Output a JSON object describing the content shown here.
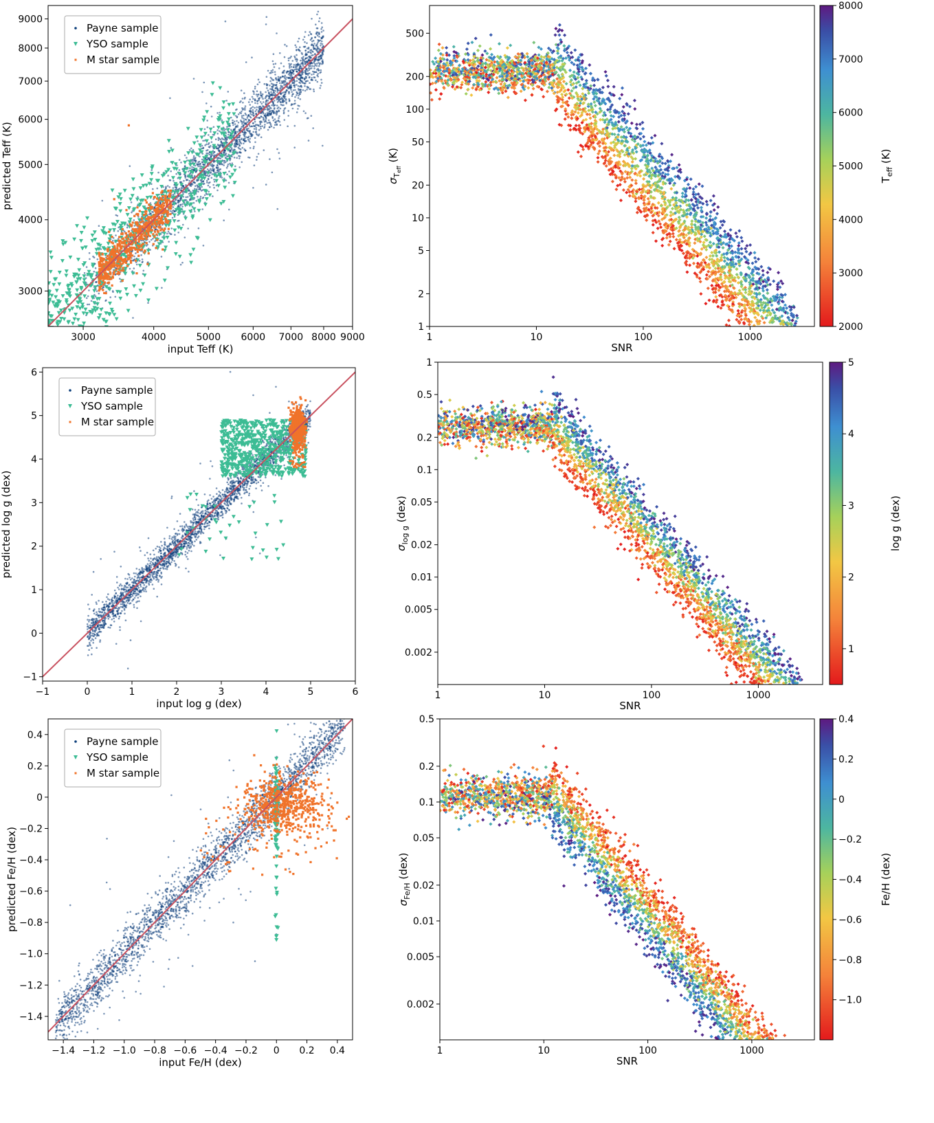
{
  "colors": {
    "payne": "#0b3d7a",
    "yso": "#3cbc94",
    "mstar": "#f0732a",
    "line": "#c8505e"
  },
  "chart_data": [
    {
      "type": "scatter",
      "id": "teff_compare",
      "xlabel": "input Teff (K)",
      "ylabel": "predicted Teff (K)",
      "xscale": "log",
      "yscale": "log",
      "xlim": [
        2600,
        9000
      ],
      "ylim": [
        2600,
        9500
      ],
      "xticks": [
        3000,
        4000,
        5000,
        6000,
        7000,
        8000,
        9000
      ],
      "xticklabels": [
        "3000",
        "4000",
        "5000",
        "6000",
        "7000",
        "8000",
        "9000"
      ],
      "yticks": [
        3000,
        4000,
        5000,
        6000,
        7000,
        8000,
        9000
      ],
      "yticklabels": [
        "3000",
        "4000",
        "5000",
        "6000",
        "7000",
        "8000",
        "9000"
      ],
      "legend": {
        "placement": "top-left",
        "entries": [
          "Payne sample",
          "YSO sample",
          "M star sample"
        ]
      },
      "series": [
        {
          "name": "Payne sample",
          "marker": "dot",
          "x_range": [
            3000,
            8000
          ],
          "scatter_frac": 0.04
        },
        {
          "name": "YSO sample",
          "marker": "triangle-down",
          "x_range": [
            2600,
            5600
          ],
          "scatter_frac": 0.12
        },
        {
          "name": "M star sample",
          "marker": "square",
          "x_range": [
            3200,
            4300
          ],
          "scatter_frac": 0.04
        }
      ],
      "reference_line": "y = x"
    },
    {
      "type": "scatter",
      "id": "teff_sigma",
      "xlabel": "SNR",
      "ylabel": "σ_Teff (K)",
      "ylabel_parts": {
        "sym": "σ",
        "sub": "T",
        "subsub": "eff",
        "unit": " (K)"
      },
      "xscale": "log",
      "yscale": "log",
      "xlim": [
        1,
        4000
      ],
      "ylim": [
        1,
        900
      ],
      "xticks": [
        1,
        10,
        100,
        1000
      ],
      "xticklabels": [
        "1",
        "10",
        "100",
        "1000"
      ],
      "yticks": [
        1,
        2,
        5,
        10,
        20,
        50,
        100,
        200,
        500
      ],
      "yticklabels": [
        "1",
        "2",
        "5",
        "10",
        "20",
        "50",
        "100",
        "200",
        "500"
      ],
      "colorbar": {
        "label": "Teff (K)",
        "label_parts": {
          "main": "T",
          "sub": "eff",
          "unit": " (K)"
        },
        "range": [
          2000,
          8000
        ],
        "ticks": [
          2000,
          3000,
          4000,
          5000,
          6000,
          7000,
          8000
        ],
        "ticklabels": [
          "2000",
          "3000",
          "4000",
          "5000",
          "6000",
          "7000",
          "8000"
        ]
      },
      "plateau": 220,
      "knee": 15,
      "slope": -1.15,
      "spread_dex": 0.45
    },
    {
      "type": "scatter",
      "id": "logg_compare",
      "xlabel": "input log g (dex)",
      "ylabel": "predicted log g (dex)",
      "xlim": [
        -1,
        6
      ],
      "ylim": [
        -1.1,
        6.1
      ],
      "xticks": [
        -1,
        0,
        1,
        2,
        3,
        4,
        5,
        6
      ],
      "xticklabels": [
        "−1",
        "0",
        "1",
        "2",
        "3",
        "4",
        "5",
        "6"
      ],
      "yticks": [
        -1,
        0,
        1,
        2,
        3,
        4,
        5,
        6
      ],
      "yticklabels": [
        "−1",
        "0",
        "1",
        "2",
        "3",
        "4",
        "5",
        "6"
      ],
      "legend": {
        "placement": "top-left",
        "entries": [
          "Payne sample",
          "YSO sample",
          "M star sample"
        ]
      },
      "series": [
        {
          "name": "Payne sample",
          "marker": "dot",
          "x_range": [
            0,
            5
          ],
          "scatter_abs": 0.18
        },
        {
          "name": "YSO sample",
          "marker": "triangle-down",
          "x_range": [
            3.0,
            4.9
          ],
          "y_range": [
            3.6,
            4.9
          ]
        },
        {
          "name": "M star sample",
          "marker": "square",
          "x_range": [
            4.6,
            5.0
          ],
          "y_range": [
            3.8,
            5.3
          ]
        }
      ],
      "reference_line": "y = x"
    },
    {
      "type": "scatter",
      "id": "logg_sigma",
      "xlabel": "SNR",
      "ylabel": "σ_log g (dex)",
      "ylabel_parts": {
        "sym": "σ",
        "sub": "log g",
        "subsub": "",
        "unit": " (dex)"
      },
      "xscale": "log",
      "yscale": "log",
      "xlim": [
        1,
        4000
      ],
      "ylim": [
        0.001,
        1
      ],
      "xticks": [
        1,
        10,
        100,
        1000
      ],
      "xticklabels": [
        "1",
        "10",
        "100",
        "1000"
      ],
      "yticks": [
        0.002,
        0.005,
        0.01,
        0.02,
        0.05,
        0.1,
        0.2,
        0.5,
        1
      ],
      "yticklabels": [
        "0.002",
        "0.005",
        "0.01",
        "0.02",
        "0.05",
        "0.1",
        "0.2",
        "0.5",
        "1"
      ],
      "colorbar": {
        "label": "log g (dex)",
        "range": [
          0.5,
          5
        ],
        "ticks": [
          1,
          2,
          3,
          4,
          5
        ],
        "ticklabels": [
          "1",
          "2",
          "3",
          "4",
          "5"
        ]
      },
      "plateau": 0.25,
      "knee": 12,
      "slope": -1.15,
      "spread_dex": 0.4
    },
    {
      "type": "scatter",
      "id": "feh_compare",
      "xlabel": "input Fe/H (dex)",
      "ylabel": "predicted Fe/H (dex)",
      "xlim": [
        -1.5,
        0.5
      ],
      "ylim": [
        -1.55,
        0.5
      ],
      "xticks": [
        -1.4,
        -1.2,
        -1.0,
        -0.8,
        -0.6,
        -0.4,
        -0.2,
        0,
        0.2,
        0.4
      ],
      "xticklabels": [
        "−1.4",
        "−1.2",
        "−1.0",
        "−0.8",
        "−0.6",
        "−0.4",
        "−0.2",
        "0",
        "0.2",
        "0.4"
      ],
      "yticks": [
        -1.4,
        -1.2,
        -1.0,
        -0.8,
        -0.6,
        -0.4,
        -0.2,
        0,
        0.2,
        0.4
      ],
      "yticklabels": [
        "−1.4",
        "−1.2",
        "−1.0",
        "−0.8",
        "−0.6",
        "−0.4",
        "−0.2",
        "0",
        "0.2",
        "0.4"
      ],
      "legend": {
        "placement": "top-left",
        "entries": [
          "Payne sample",
          "YSO sample",
          "M star sample"
        ]
      },
      "series": [
        {
          "name": "Payne sample",
          "marker": "dot",
          "x_range": [
            -1.45,
            0.45
          ],
          "scatter_abs": 0.08
        },
        {
          "name": "YSO sample",
          "marker": "triangle-down",
          "x_value": 0.0,
          "y_range": [
            -0.95,
            0.35
          ]
        },
        {
          "name": "M star sample",
          "marker": "square",
          "x_range": [
            -0.5,
            0.3
          ],
          "y_range": [
            -0.5,
            0.1
          ]
        }
      ],
      "reference_line": "y = x"
    },
    {
      "type": "scatter",
      "id": "feh_sigma",
      "xlabel": "SNR",
      "ylabel": "σ_Fe/H (dex)",
      "ylabel_parts": {
        "sym": "σ",
        "sub": "Fe/H",
        "subsub": "",
        "unit": " (dex)"
      },
      "xscale": "log",
      "yscale": "log",
      "xlim": [
        1,
        4000
      ],
      "ylim": [
        0.001,
        0.5
      ],
      "xticks": [
        1,
        10,
        100,
        1000
      ],
      "xticklabels": [
        "1",
        "10",
        "100",
        "1000"
      ],
      "yticks": [
        0.002,
        0.005,
        0.01,
        0.02,
        0.05,
        0.1,
        0.2,
        0.5
      ],
      "yticklabels": [
        "0.002",
        "0.005",
        "0.01",
        "0.02",
        "0.05",
        "0.1",
        "0.2",
        "0.5"
      ],
      "colorbar": {
        "label": "Fe/H (dex)",
        "range": [
          -1.2,
          0.4
        ],
        "ticks": [
          -1.0,
          -0.8,
          -0.6,
          -0.4,
          -0.2,
          0,
          0.2,
          0.4
        ],
        "ticklabels": [
          "−1.0",
          "−0.8",
          "−0.6",
          "−0.4",
          "−0.2",
          "0",
          "0.2",
          "0.4"
        ]
      },
      "plateau": 0.11,
      "knee": 12,
      "slope": -1.1,
      "spread_dex": 0.4
    }
  ]
}
